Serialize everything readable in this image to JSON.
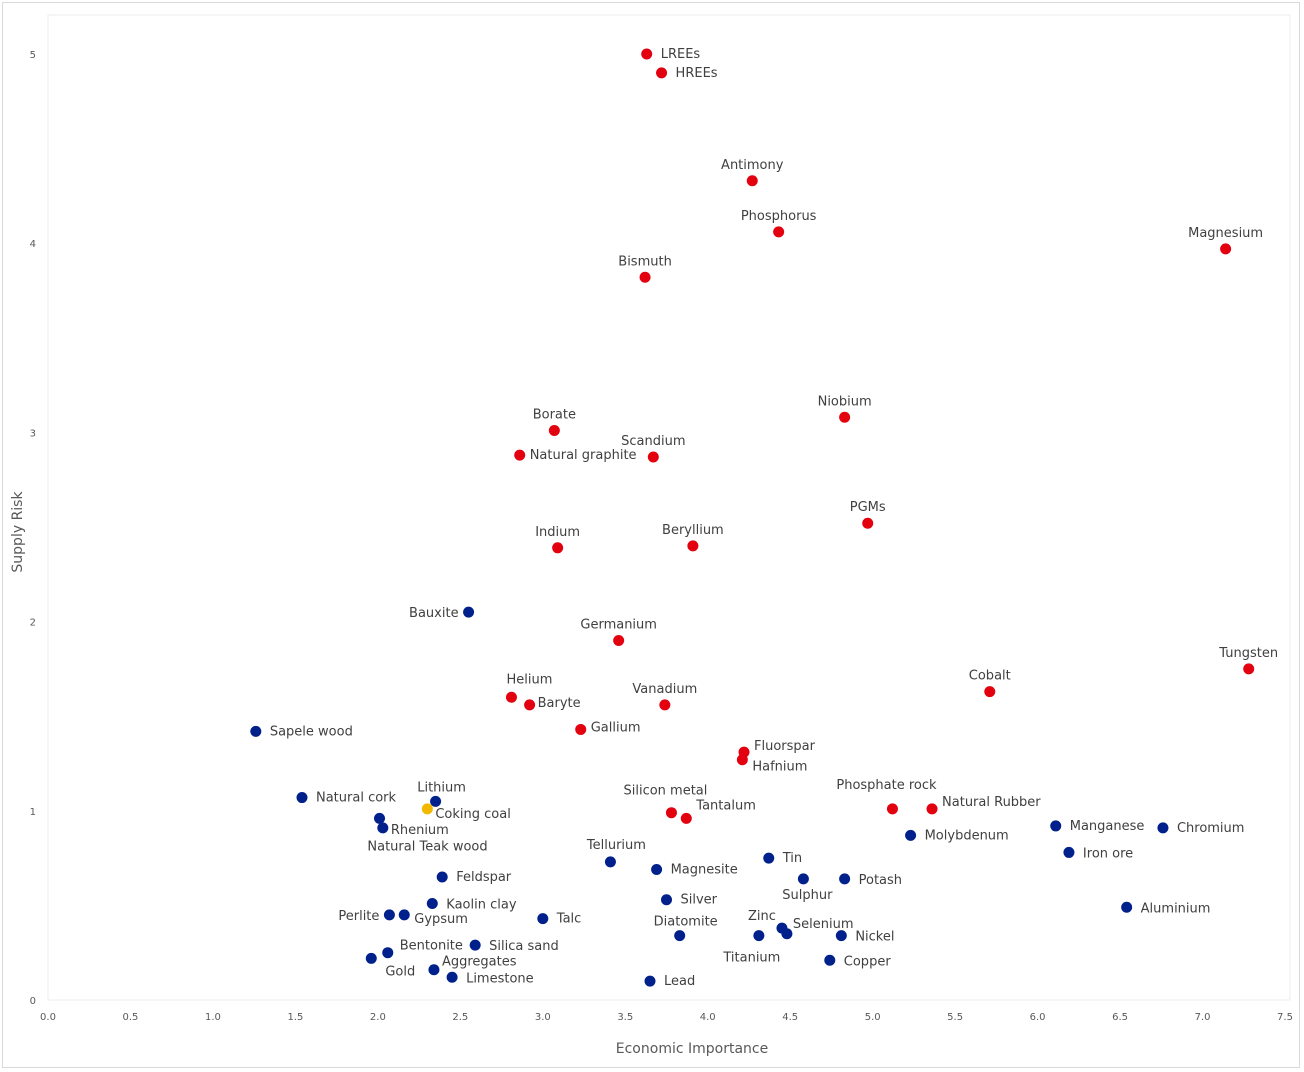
{
  "chart_data": {
    "type": "scatter",
    "title": "",
    "xlabel": "Economic Importance",
    "ylabel": "Supply Risk",
    "xlim": [
      0,
      7.5
    ],
    "ylim": [
      0,
      5
    ],
    "xticks": [
      "0.0",
      "0.5",
      "1.0",
      "1.5",
      "2.0",
      "2.5",
      "3.0",
      "3.5",
      "4.0",
      "4.5",
      "5.0",
      "5.5",
      "6.0",
      "6.5",
      "7.0",
      "7.5"
    ],
    "yticks": [
      "0",
      "1",
      "2",
      "3",
      "4",
      "5"
    ],
    "grid": false,
    "colors": {
      "critical": "#e3000f",
      "non_critical": "#00208c",
      "highlight": "#f2b800"
    },
    "points": [
      {
        "name": "LREEs",
        "x": 3.63,
        "y": 5.0,
        "group": "critical"
      },
      {
        "name": "HREEs",
        "x": 3.72,
        "y": 4.9,
        "group": "critical"
      },
      {
        "name": "Antimony",
        "x": 4.27,
        "y": 4.33,
        "group": "critical"
      },
      {
        "name": "Phosphorus",
        "x": 4.43,
        "y": 4.06,
        "group": "critical"
      },
      {
        "name": "Magnesium",
        "x": 7.14,
        "y": 3.97,
        "group": "critical"
      },
      {
        "name": "Bismuth",
        "x": 3.62,
        "y": 3.82,
        "group": "critical"
      },
      {
        "name": "Niobium",
        "x": 4.83,
        "y": 3.08,
        "group": "critical"
      },
      {
        "name": "Borate",
        "x": 3.07,
        "y": 3.01,
        "group": "critical"
      },
      {
        "name": "Natural graphite",
        "x": 2.86,
        "y": 2.88,
        "group": "critical"
      },
      {
        "name": "Scandium",
        "x": 3.67,
        "y": 2.87,
        "group": "critical"
      },
      {
        "name": "PGMs",
        "x": 4.97,
        "y": 2.52,
        "group": "critical"
      },
      {
        "name": "Indium",
        "x": 3.09,
        "y": 2.39,
        "group": "critical"
      },
      {
        "name": "Beryllium",
        "x": 3.91,
        "y": 2.4,
        "group": "critical"
      },
      {
        "name": "Bauxite",
        "x": 2.55,
        "y": 2.05,
        "group": "non_critical"
      },
      {
        "name": "Germanium",
        "x": 3.46,
        "y": 1.9,
        "group": "critical"
      },
      {
        "name": "Tungsten",
        "x": 7.28,
        "y": 1.75,
        "group": "critical"
      },
      {
        "name": "Cobalt",
        "x": 5.71,
        "y": 1.63,
        "group": "critical"
      },
      {
        "name": "Helium",
        "x": 2.81,
        "y": 1.6,
        "group": "critical"
      },
      {
        "name": "Baryte",
        "x": 2.92,
        "y": 1.56,
        "group": "critical"
      },
      {
        "name": "Vanadium",
        "x": 3.74,
        "y": 1.56,
        "group": "critical"
      },
      {
        "name": "Sapele wood",
        "x": 1.26,
        "y": 1.42,
        "group": "non_critical"
      },
      {
        "name": "Gallium",
        "x": 3.23,
        "y": 1.43,
        "group": "critical"
      },
      {
        "name": "Fluorspar",
        "x": 4.22,
        "y": 1.31,
        "group": "critical"
      },
      {
        "name": "Hafnium",
        "x": 4.21,
        "y": 1.27,
        "group": "critical"
      },
      {
        "name": "Natural cork",
        "x": 1.54,
        "y": 1.07,
        "group": "non_critical"
      },
      {
        "name": "Lithium",
        "x": 2.35,
        "y": 1.05,
        "group": "non_critical"
      },
      {
        "name": "Coking coal",
        "x": 2.3,
        "y": 1.01,
        "group": "highlight"
      },
      {
        "name": "Phosphate rock",
        "x": 5.12,
        "y": 1.01,
        "group": "critical"
      },
      {
        "name": "Natural Rubber",
        "x": 5.36,
        "y": 1.01,
        "group": "critical"
      },
      {
        "name": "Silicon metal",
        "x": 3.78,
        "y": 0.99,
        "group": "critical"
      },
      {
        "name": "Tantalum",
        "x": 3.87,
        "y": 0.96,
        "group": "critical"
      },
      {
        "name": "Manganese",
        "x": 6.11,
        "y": 0.92,
        "group": "non_critical"
      },
      {
        "name": "Chromium",
        "x": 6.76,
        "y": 0.91,
        "group": "non_critical"
      },
      {
        "name": "Molybdenum",
        "x": 5.23,
        "y": 0.87,
        "group": "non_critical"
      },
      {
        "name": "Natural Teak wood",
        "x": 2.01,
        "y": 0.96,
        "group": "non_critical"
      },
      {
        "name": "Rhenium",
        "x": 2.03,
        "y": 0.91,
        "group": "non_critical"
      },
      {
        "name": "Iron ore",
        "x": 6.19,
        "y": 0.78,
        "group": "non_critical"
      },
      {
        "name": "Tellurium",
        "x": 3.41,
        "y": 0.73,
        "group": "non_critical"
      },
      {
        "name": "Tin",
        "x": 4.37,
        "y": 0.75,
        "group": "non_critical"
      },
      {
        "name": "Magnesite",
        "x": 3.69,
        "y": 0.69,
        "group": "non_critical"
      },
      {
        "name": "Feldspar",
        "x": 2.39,
        "y": 0.65,
        "group": "non_critical"
      },
      {
        "name": "Sulphur",
        "x": 4.58,
        "y": 0.64,
        "group": "non_critical"
      },
      {
        "name": "Potash",
        "x": 4.83,
        "y": 0.64,
        "group": "non_critical"
      },
      {
        "name": "Silver",
        "x": 3.75,
        "y": 0.53,
        "group": "non_critical"
      },
      {
        "name": "Kaolin clay",
        "x": 2.33,
        "y": 0.51,
        "group": "non_critical"
      },
      {
        "name": "Aluminium",
        "x": 6.54,
        "y": 0.49,
        "group": "non_critical"
      },
      {
        "name": "Perlite",
        "x": 2.07,
        "y": 0.45,
        "group": "non_critical"
      },
      {
        "name": "Gypsum",
        "x": 2.16,
        "y": 0.45,
        "group": "non_critical"
      },
      {
        "name": "Talc",
        "x": 3.0,
        "y": 0.43,
        "group": "non_critical"
      },
      {
        "name": "Zinc",
        "x": 4.45,
        "y": 0.38,
        "group": "non_critical"
      },
      {
        "name": "Selenium",
        "x": 4.48,
        "y": 0.35,
        "group": "non_critical"
      },
      {
        "name": "Diatomite",
        "x": 3.83,
        "y": 0.34,
        "group": "non_critical"
      },
      {
        "name": "Titanium",
        "x": 4.31,
        "y": 0.34,
        "group": "non_critical"
      },
      {
        "name": "Nickel",
        "x": 4.81,
        "y": 0.34,
        "group": "non_critical"
      },
      {
        "name": "Silica sand",
        "x": 2.59,
        "y": 0.29,
        "group": "non_critical"
      },
      {
        "name": "Bentonite",
        "x": 2.06,
        "y": 0.25,
        "group": "non_critical"
      },
      {
        "name": "Gold",
        "x": 1.96,
        "y": 0.22,
        "group": "non_critical"
      },
      {
        "name": "Copper",
        "x": 4.74,
        "y": 0.21,
        "group": "non_critical"
      },
      {
        "name": "Aggregates",
        "x": 2.34,
        "y": 0.16,
        "group": "non_critical"
      },
      {
        "name": "Limestone",
        "x": 2.45,
        "y": 0.12,
        "group": "non_critical"
      },
      {
        "name": "Lead",
        "x": 3.65,
        "y": 0.1,
        "group": "non_critical"
      }
    ]
  }
}
